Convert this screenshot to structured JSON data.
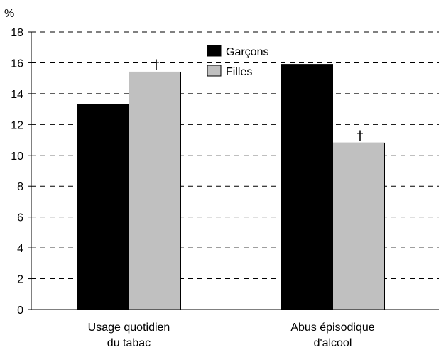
{
  "chart_data": {
    "type": "bar",
    "ylabel": "%",
    "ylim": [
      0,
      18
    ],
    "yticks": [
      0,
      2,
      4,
      6,
      8,
      10,
      12,
      14,
      16,
      18
    ],
    "grid": true,
    "legend_position": "top-center",
    "categories": [
      [
        "Usage quotidien",
        "du tabac"
      ],
      [
        "Abus épisodique",
        "d'alcool"
      ]
    ],
    "series": [
      {
        "name": "Garçons",
        "color": "#000000",
        "values": [
          13.3,
          15.9
        ]
      },
      {
        "name": "Filles",
        "color": "#c0c0c0",
        "values": [
          15.4,
          10.8
        ]
      }
    ],
    "annotations": [
      {
        "category_index": 0,
        "series_index": 1,
        "text": "†"
      },
      {
        "category_index": 1,
        "series_index": 1,
        "text": "†"
      }
    ]
  }
}
